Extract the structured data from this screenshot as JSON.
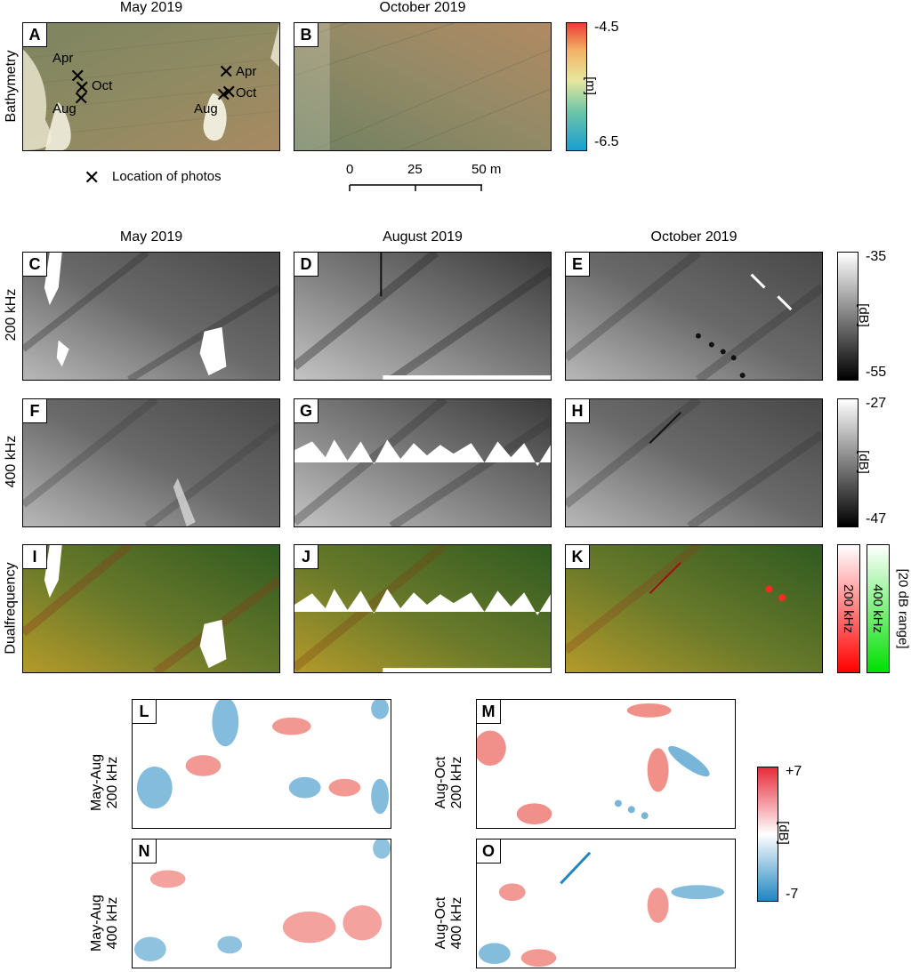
{
  "bathymetry": {
    "row_label": "Bathymetry",
    "headers": [
      "May 2019",
      "October 2019"
    ],
    "panels": [
      {
        "letter": "A"
      },
      {
        "letter": "B"
      }
    ],
    "photo_marks_left": [
      "Apr",
      "Oct",
      "Aug"
    ],
    "photo_marks_right": [
      "Apr",
      "Oct",
      "Aug"
    ],
    "legend_text": "Location of photos",
    "colorbar": {
      "max": "-4.5",
      "min": "-6.5",
      "unit": "[m]",
      "colors": [
        "#1a9ed0",
        "#6cc5a8",
        "#e7e79c",
        "#f2b468",
        "#ec3d33"
      ]
    },
    "scalebar": {
      "ticks": [
        "0",
        "25",
        "50 m"
      ]
    }
  },
  "backscatter": {
    "headers": [
      "May 2019",
      "August 2019",
      "October 2019"
    ],
    "rows": [
      {
        "label": "200 kHz",
        "panels": [
          {
            "letter": "C"
          },
          {
            "letter": "D"
          },
          {
            "letter": "E"
          }
        ],
        "colorbar": {
          "max": "-35",
          "min": "-55",
          "unit": "[dB]"
        }
      },
      {
        "label": "400 kHz",
        "panels": [
          {
            "letter": "F"
          },
          {
            "letter": "G"
          },
          {
            "letter": "H"
          }
        ],
        "colorbar": {
          "max": "-27",
          "min": "-47",
          "unit": "[dB]"
        }
      },
      {
        "label": "Dualfrequency",
        "panels": [
          {
            "letter": "I"
          },
          {
            "letter": "J"
          },
          {
            "letter": "K"
          }
        ],
        "colorbar": {
          "label_a": "200 kHz",
          "label_b": "400 kHz",
          "unit": "[20 dB range]"
        }
      }
    ]
  },
  "difference": {
    "left": {
      "rows": [
        {
          "label_1": "May-Aug",
          "label_2": "200 kHz",
          "letter": "L"
        },
        {
          "label_1": "May-Aug",
          "label_2": "400 kHz",
          "letter": "N"
        }
      ]
    },
    "right": {
      "rows": [
        {
          "label_1": "Aug-Oct",
          "label_2": "200 kHz",
          "letter": "M"
        },
        {
          "label_1": "Aug-Oct",
          "label_2": "400 kHz",
          "letter": "O"
        }
      ]
    },
    "colorbar": {
      "max": "+7",
      "min": "-7",
      "unit": "[dB]",
      "colors": [
        "#1f86c0",
        "#ffffff",
        "#e62b3a"
      ]
    }
  }
}
